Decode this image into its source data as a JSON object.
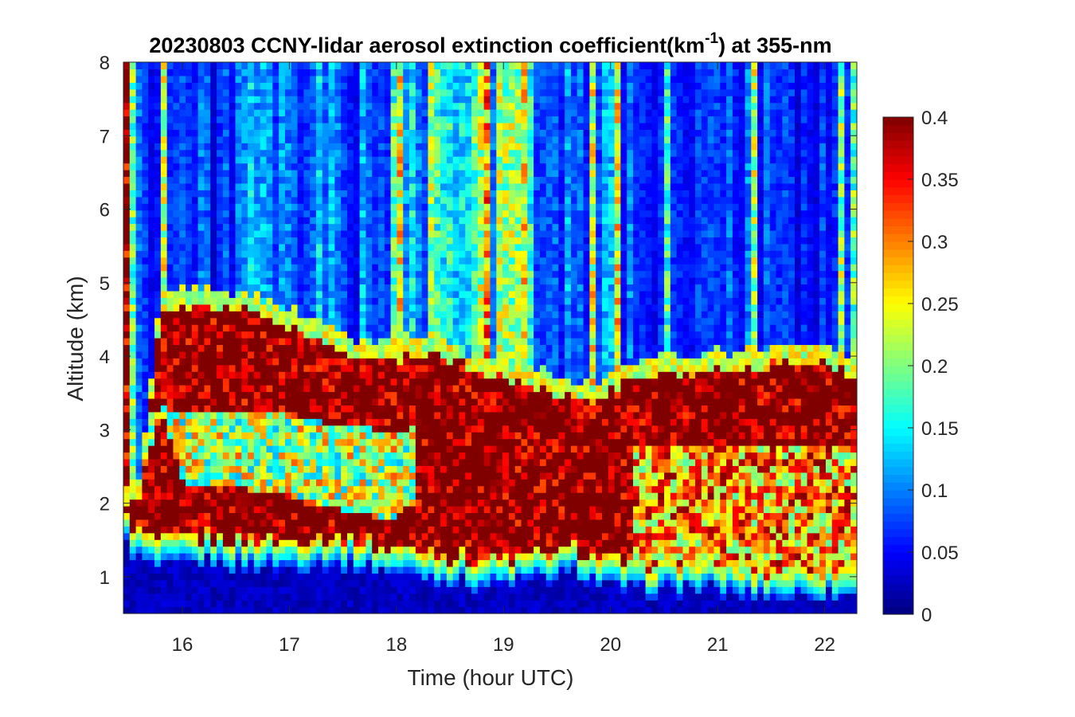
{
  "chart_data": {
    "type": "heatmap",
    "title": {
      "prefix": "20230803 CCNY-lidar aerosol extinction coefficient(km",
      "superscript": "-1",
      "suffix": ") at 355-nm"
    },
    "xlabel": "Time (hour UTC)",
    "ylabel": "Altitude (km)",
    "xlim": [
      15.45,
      22.3
    ],
    "ylim": [
      0.5,
      8
    ],
    "x_ticks": [
      "16",
      "17",
      "18",
      "19",
      "20",
      "21",
      "22"
    ],
    "y_ticks": [
      "1",
      "2",
      "3",
      "4",
      "5",
      "6",
      "7",
      "8"
    ],
    "colorbar": {
      "min": 0,
      "max": 0.4,
      "colormap": "jet",
      "ticks": [
        "0",
        "0.05",
        "0.1",
        "0.15",
        "0.2",
        "0.25",
        "0.3",
        "0.35",
        "0.4"
      ]
    },
    "profiles": [
      {
        "x": 15.47,
        "base": 1.8,
        "top": 2.05,
        "upper": 0.35,
        "sat_top": 2.0
      },
      {
        "x": 15.6,
        "base": 1.6,
        "top": 2.0,
        "upper": 0.05
      },
      {
        "x": 15.8,
        "base": 1.45,
        "top": 4.6,
        "upper": 0.08,
        "mid_low": 3.25,
        "mid_high": 3.3
      },
      {
        "x": 16.0,
        "base": 1.5,
        "top": 4.65,
        "upper": 0.06,
        "mid_low": 2.3,
        "mid_high": 3.25
      },
      {
        "x": 16.3,
        "base": 1.55,
        "top": 4.7,
        "upper": 0.05,
        "mid_low": 2.2,
        "mid_high": 3.25
      },
      {
        "x": 16.6,
        "base": 1.5,
        "top": 4.6,
        "upper": 0.08,
        "mid_low": 2.2,
        "mid_high": 3.2
      },
      {
        "x": 17.0,
        "base": 1.5,
        "top": 4.4,
        "upper": 0.06,
        "mid_low": 2.1,
        "mid_high": 3.2
      },
      {
        "x": 17.3,
        "base": 1.55,
        "top": 4.2,
        "upper": 0.08,
        "mid_low": 2.0,
        "mid_high": 3.1
      },
      {
        "x": 17.6,
        "base": 1.5,
        "top": 4.0,
        "upper": 0.07,
        "mid_low": 1.85,
        "mid_high": 3.1
      },
      {
        "x": 18.0,
        "base": 1.4,
        "top": 3.95,
        "upper": 0.07,
        "mid_low": 1.8,
        "mid_high": 2.9
      },
      {
        "x": 18.3,
        "base": 1.35,
        "top": 4.1,
        "upper": 0.1
      },
      {
        "x": 18.7,
        "base": 1.25,
        "top": 3.8,
        "upper": 0.12
      },
      {
        "x": 19.0,
        "base": 1.25,
        "top": 3.7,
        "upper": 0.15
      },
      {
        "x": 19.3,
        "base": 1.3,
        "top": 3.6,
        "upper": 0.1
      },
      {
        "x": 19.7,
        "base": 1.4,
        "top": 3.4,
        "upper": 0.08
      },
      {
        "x": 20.0,
        "base": 1.2,
        "top": 3.5,
        "upper": 0.08
      },
      {
        "x": 20.3,
        "base": 1.15,
        "top": 3.75,
        "upper": 0.06
      },
      {
        "x": 20.7,
        "base": 1.2,
        "top": 3.75,
        "upper": 0.05
      },
      {
        "x": 21.0,
        "base": 1.15,
        "top": 3.85,
        "upper": 0.05
      },
      {
        "x": 21.3,
        "base": 1.1,
        "top": 3.8,
        "upper": 0.06
      },
      {
        "x": 21.6,
        "base": 1.1,
        "top": 3.9,
        "upper": 0.05
      },
      {
        "x": 21.9,
        "base": 1.1,
        "top": 3.95,
        "upper": 0.05
      },
      {
        "x": 22.3,
        "base": 1.1,
        "top": 3.7,
        "upper": 0.05
      }
    ],
    "note_grid": "Values are a coarse approximation of the displayed extinction field; columns between listed profiles are interpolated."
  }
}
